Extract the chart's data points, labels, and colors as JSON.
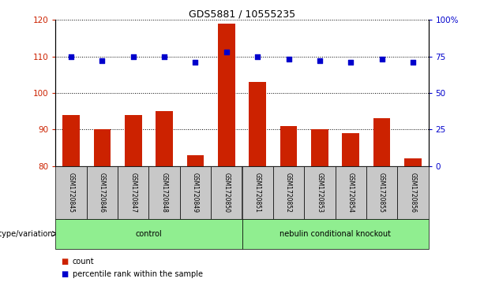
{
  "title": "GDS5881 / 10555235",
  "samples": [
    "GSM1720845",
    "GSM1720846",
    "GSM1720847",
    "GSM1720848",
    "GSM1720849",
    "GSM1720850",
    "GSM1720851",
    "GSM1720852",
    "GSM1720853",
    "GSM1720854",
    "GSM1720855",
    "GSM1720856"
  ],
  "counts": [
    94,
    90,
    94,
    95,
    83,
    119,
    103,
    91,
    90,
    89,
    93,
    82
  ],
  "percentiles": [
    75,
    72,
    75,
    75,
    71,
    78,
    75,
    73,
    72,
    71,
    73,
    71
  ],
  "ylim_left": [
    80,
    120
  ],
  "ylim_right": [
    0,
    100
  ],
  "yticks_left": [
    80,
    90,
    100,
    110,
    120
  ],
  "yticks_right": [
    0,
    25,
    50,
    75,
    100
  ],
  "yticklabels_right": [
    "0",
    "25",
    "50",
    "75",
    "100%"
  ],
  "groups": [
    {
      "label": "control",
      "start": 0,
      "end": 6,
      "color": "#90EE90"
    },
    {
      "label": "nebulin conditional knockout",
      "start": 6,
      "end": 12,
      "color": "#90EE90"
    }
  ],
  "group_row_label": "genotype/variation",
  "bar_color": "#CC2200",
  "dot_color": "#0000CC",
  "background_color": "#FFFFFF",
  "plot_bg_color": "#FFFFFF",
  "left_tick_color": "#CC2200",
  "right_tick_color": "#0000CC",
  "legend_items": [
    {
      "label": "count",
      "color": "#CC2200"
    },
    {
      "label": "percentile rank within the sample",
      "color": "#0000CC"
    }
  ],
  "gridline_color": "#000000",
  "tick_area_bg": "#C8C8C8",
  "bar_width": 0.55
}
